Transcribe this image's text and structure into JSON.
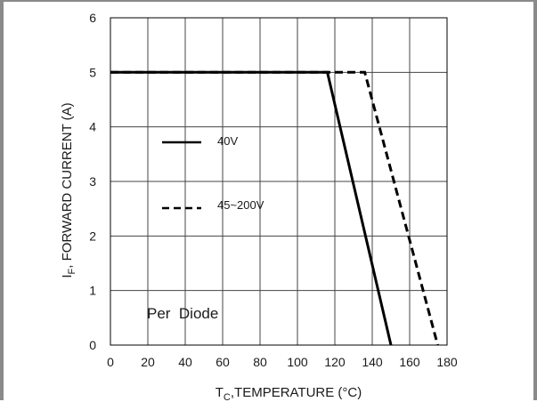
{
  "chart_data": {
    "type": "line",
    "xlabel_main": "T",
    "xlabel_sub": "C",
    "xlabel_rest": ",TEMPERATURE (°C)",
    "ylabel_main": "I",
    "ylabel_sub": "F",
    "ylabel_rest": ", FORWARD CURRENT (A)",
    "xlim": [
      0,
      180
    ],
    "ylim": [
      0,
      6
    ],
    "x_ticks": [
      "0",
      "20",
      "40",
      "60",
      "80",
      "100",
      "120",
      "140",
      "160",
      "180"
    ],
    "y_ticks": [
      "0",
      "1",
      "2",
      "3",
      "4",
      "5",
      "6"
    ],
    "grid": true,
    "series": [
      {
        "name": "40V",
        "style": "solid",
        "color": "#000000",
        "points": [
          [
            0,
            5
          ],
          [
            116,
            5
          ],
          [
            150,
            0
          ]
        ]
      },
      {
        "name": "45~200V",
        "style": "dashed",
        "color": "#000000",
        "points": [
          [
            0,
            5
          ],
          [
            136,
            5
          ],
          [
            175,
            0
          ]
        ]
      }
    ],
    "annotation": "Per  Diode"
  }
}
